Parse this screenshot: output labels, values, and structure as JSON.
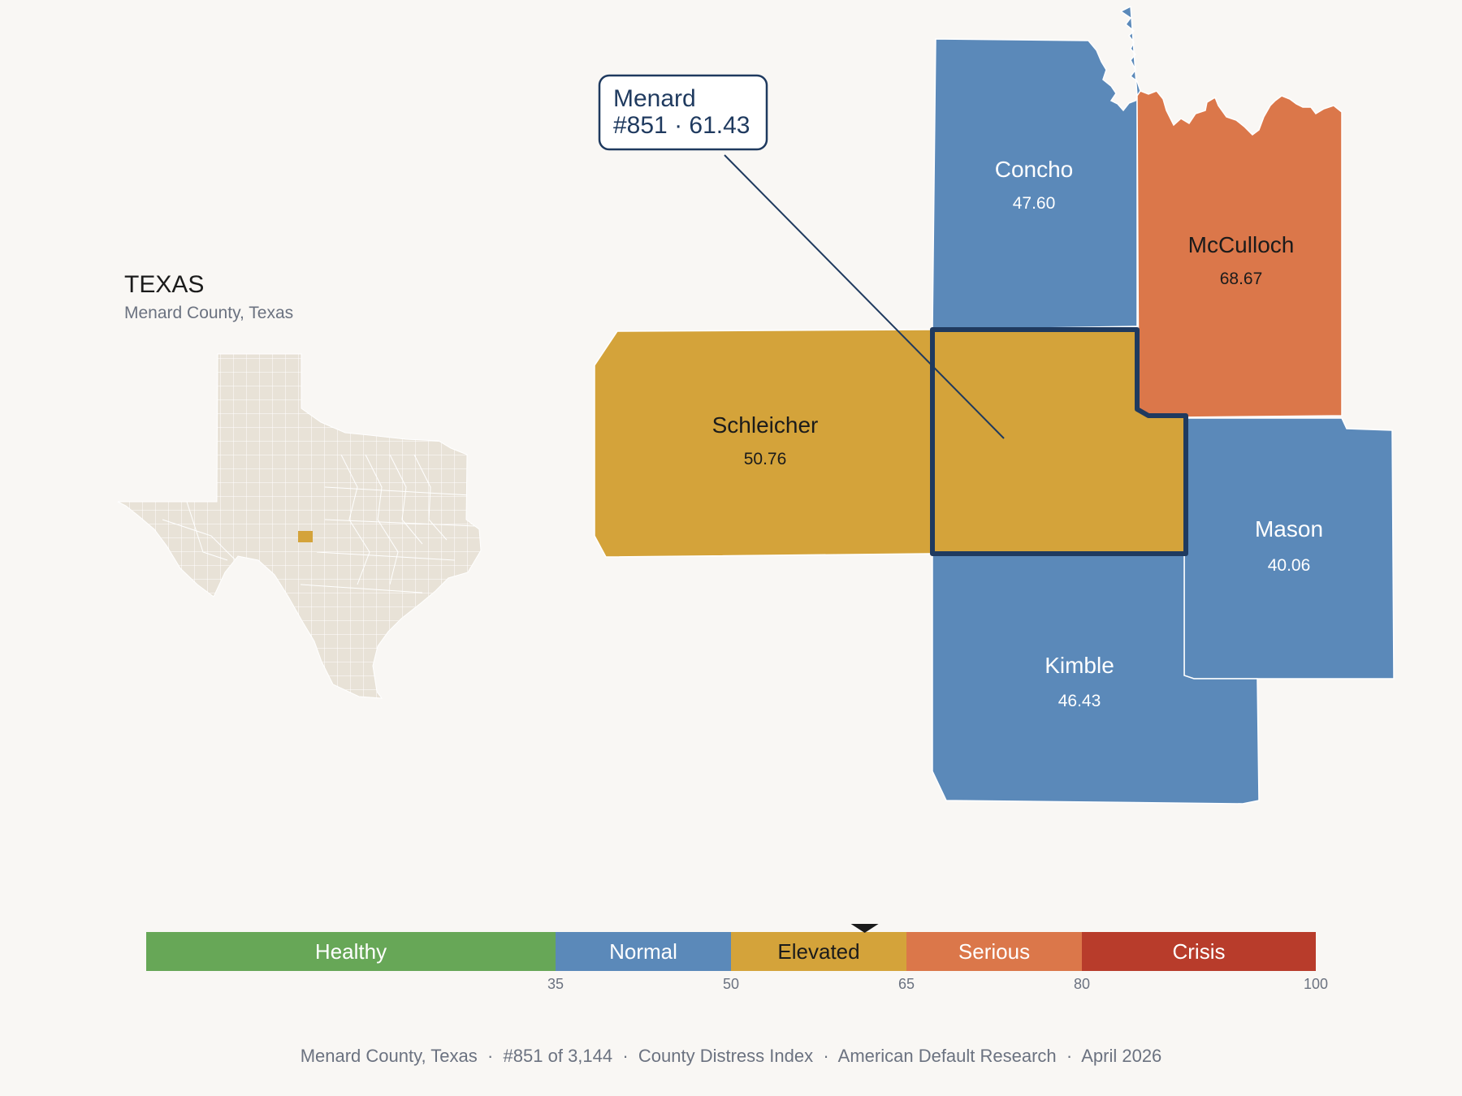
{
  "state": {
    "title": "TEXAS",
    "subtitle": "Menard County, Texas",
    "highlight_color": "#d4a33a",
    "base_color": "#e8e2d7"
  },
  "counties": [
    {
      "name": "Concho",
      "value": "47.60",
      "color": "#5b89b9",
      "text_color": "#ffffff"
    },
    {
      "name": "McCulloch",
      "value": "68.67",
      "color": "#db774a",
      "text_color": "#1b1b1b"
    },
    {
      "name": "Schleicher",
      "value": "50.76",
      "color": "#d4a33a",
      "text_color": "#1b1b1b"
    },
    {
      "name": "Menard",
      "value": "61.43",
      "color": "#d4a33a",
      "text_color": "#1b1b1b",
      "selected": true
    },
    {
      "name": "Mason",
      "value": "40.06",
      "color": "#5b89b9",
      "text_color": "#ffffff"
    },
    {
      "name": "Kimble",
      "value": "46.43",
      "color": "#5b89b9",
      "text_color": "#ffffff"
    }
  ],
  "callout": {
    "line1": "Menard",
    "line2": "#851 · 61.43",
    "border_color": "#1f3a5f"
  },
  "legend": {
    "min": 0,
    "max": 100,
    "marker_value": 61.43,
    "segments": [
      {
        "label": "Healthy",
        "from": 0,
        "to": 35,
        "color": "#67a757",
        "text_color": "#ffffff"
      },
      {
        "label": "Normal",
        "from": 35,
        "to": 50,
        "color": "#5b89b9",
        "text_color": "#ffffff"
      },
      {
        "label": "Elevated",
        "from": 50,
        "to": 65,
        "color": "#d4a33a",
        "text_color": "#1b1b1b"
      },
      {
        "label": "Serious",
        "from": 65,
        "to": 80,
        "color": "#db774a",
        "text_color": "#ffffff"
      },
      {
        "label": "Crisis",
        "from": 80,
        "to": 100,
        "color": "#b83c2b",
        "text_color": "#ffffff"
      }
    ],
    "ticks": [
      "35",
      "50",
      "65",
      "80",
      "100"
    ]
  },
  "footer": {
    "text": "Menard County, Texas  ·  #851 of 3,144  ·  County Distress Index  ·  American Default Research  ·  April 2026"
  }
}
